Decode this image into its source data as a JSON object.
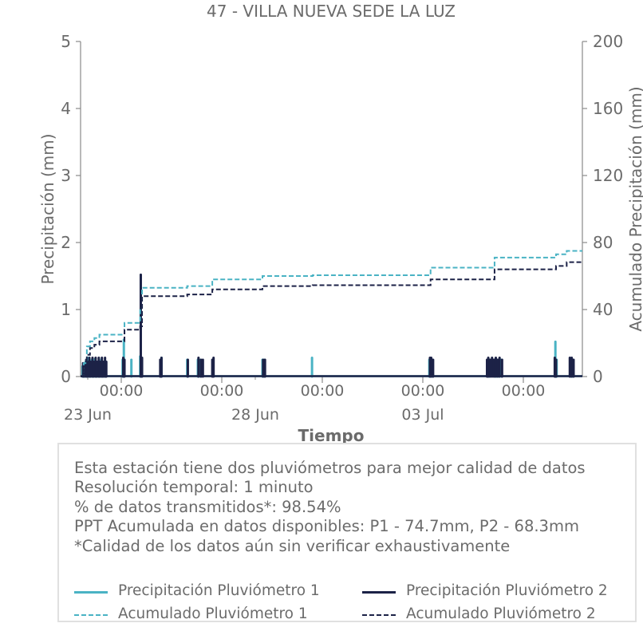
{
  "chart_data": {
    "type": "line",
    "title": "47 - VILLA NUEVA SEDE LA LUZ",
    "xlabel": "Tiempo",
    "ylabel": "Precipitación (mm)",
    "y2label": "Acumulado Precipitación (mm)",
    "ylim": [
      0,
      5
    ],
    "y2lim": [
      0,
      200
    ],
    "yticks": [
      "0",
      "1",
      "2",
      "3",
      "4",
      "5"
    ],
    "y2ticks": [
      "0",
      "40",
      "80",
      "120",
      "160",
      "200"
    ],
    "xticks_major": [
      "00:00",
      "00:00",
      "00:00",
      "00:00",
      "00:00"
    ],
    "xticks_minor": [
      "23 Jun",
      "28 Jun",
      "03 Jul"
    ],
    "grid": false,
    "colors": {
      "p1": "#4ab3c4",
      "p2": "#1c2247",
      "text": "#6b6b6b",
      "axis": "#8a8a8a"
    },
    "series": [
      {
        "name": "Precipitación Pluviómetro 1",
        "style": "solid-spikes",
        "color": "#4ab3c4",
        "x": [
          0.3,
          0.5,
          0.8,
          1.0,
          1.3,
          1.5,
          1.8,
          2.0,
          2.3,
          2.5,
          2.8,
          3.0,
          3.3,
          3.5,
          3.8,
          4.0,
          6.7,
          6.9,
          8.1,
          9.5,
          9.7,
          12.8,
          12.9,
          17.0,
          18.7,
          19.1,
          29.0,
          29.3,
          36.9,
          55.6,
          55.8,
          56.1,
          64.9,
          65.2,
          66.0,
          66.3,
          66.7,
          67.1,
          75.7,
          75.9,
          78.2,
          78.4
        ],
        "values": [
          0.15,
          0.12,
          0.22,
          0.18,
          0.28,
          0.2,
          0.25,
          0.18,
          0.26,
          0.2,
          0.22,
          0.18,
          0.25,
          0.2,
          0.22,
          0.18,
          0.25,
          0.55,
          0.25,
          0.3,
          0.12,
          0.15,
          0.28,
          0.25,
          0.25,
          0.25,
          0.25,
          0.25,
          0.28,
          0.25,
          0.25,
          0.25,
          0.25,
          0.25,
          0.25,
          0.25,
          0.25,
          0.25,
          0.52,
          0.25,
          0.25,
          0.25
        ]
      },
      {
        "name": "Precipitación Pluviómetro 2",
        "style": "solid-spikes",
        "color": "#1c2247",
        "x": [
          0.4,
          0.6,
          0.9,
          1.1,
          1.4,
          1.6,
          1.9,
          2.1,
          2.4,
          2.6,
          2.9,
          3.1,
          3.4,
          3.6,
          3.9,
          4.1,
          6.8,
          7.0,
          9.6,
          9.8,
          12.7,
          12.9,
          17.1,
          18.8,
          19.2,
          19.5,
          21.0,
          21.2,
          29.1,
          29.4,
          55.7,
          55.9,
          56.2,
          64.8,
          65.0,
          65.3,
          65.6,
          65.9,
          66.2,
          66.5,
          66.8,
          67.2,
          75.6,
          75.8,
          78.0,
          78.3,
          78.6
        ],
        "values": [
          0.2,
          0.18,
          0.25,
          0.22,
          0.28,
          0.22,
          0.28,
          0.22,
          0.28,
          0.22,
          0.28,
          0.22,
          0.28,
          0.22,
          0.28,
          0.22,
          0.28,
          0.25,
          1.52,
          0.28,
          0.25,
          0.28,
          0.25,
          0.28,
          0.25,
          0.25,
          0.25,
          0.28,
          0.25,
          0.25,
          0.28,
          0.28,
          0.25,
          0.25,
          0.28,
          0.25,
          0.28,
          0.25,
          0.28,
          0.25,
          0.28,
          0.25,
          0.28,
          0.25,
          0.28,
          0.28,
          0.25
        ]
      },
      {
        "name": "Acumulado Pluviómetro 1",
        "style": "dashed-step",
        "color": "#4ab3c4",
        "x": [
          0,
          0.5,
          1.0,
          1.5,
          2.2,
          3.0,
          7.0,
          9.5,
          9.8,
          17.0,
          21.0,
          29.0,
          37.0,
          50.0,
          55.8,
          64.5,
          66.0,
          75.8,
          77.5,
          80.0
        ],
        "values": [
          0,
          8,
          18,
          21,
          23,
          25,
          32,
          41,
          53,
          54,
          58,
          60,
          60.5,
          60.5,
          65,
          65,
          71,
          73,
          75,
          75
        ]
      },
      {
        "name": "Acumulado Pluviómetro 2",
        "style": "dashed-step",
        "color": "#1c2247",
        "x": [
          0,
          0.5,
          1.0,
          1.5,
          2.2,
          3.0,
          7.0,
          9.5,
          9.8,
          17.0,
          21.0,
          29.0,
          37.0,
          50.0,
          55.8,
          64.5,
          66.0,
          75.8,
          77.5,
          80.0
        ],
        "values": [
          0,
          5,
          13,
          17,
          19,
          21,
          28,
          30,
          48,
          49,
          52,
          54,
          54.5,
          54.5,
          58,
          58,
          64,
          66,
          68.3,
          68.3
        ]
      }
    ]
  },
  "info": {
    "lines": [
      "Esta estación tiene dos pluviómetros para mejor calidad de datos",
      "Resolución temporal: 1 minuto",
      "% de datos transmitidos*: 98.54%",
      "PPT Acumulada en datos disponibles: P1 - 74.7mm, P2 - 68.3mm",
      "*Calidad de los datos aún sin verificar exhaustivamente"
    ]
  },
  "legend": {
    "p1_label": "Precipitación Pluviómetro 1",
    "p2_label": "Precipitación Pluviómetro 2",
    "acc1_label": "Acumulado Pluviómetro 1",
    "acc2_label": "Acumulado Pluviómetro 2"
  }
}
